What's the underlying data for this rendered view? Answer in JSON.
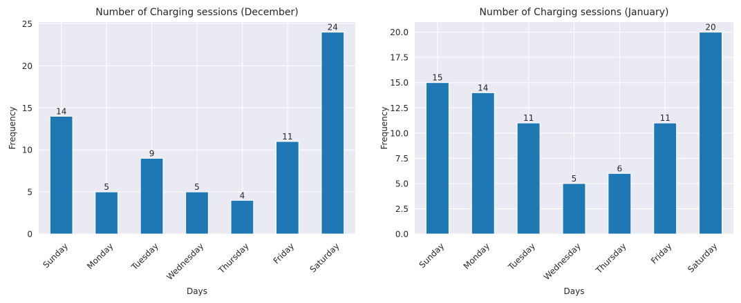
{
  "chart_data": [
    {
      "type": "bar",
      "title": "Number of Charging sessions (December)",
      "xlabel": "Days",
      "ylabel": "Frequency",
      "categories": [
        "Sunday",
        "Monday",
        "Tuesday",
        "Wednesday",
        "Thursday",
        "Friday",
        "Saturday"
      ],
      "values": [
        14,
        5,
        9,
        5,
        4,
        11,
        24
      ],
      "data_labels": [
        "14",
        "5",
        "9",
        "5",
        "4",
        "11",
        "24"
      ],
      "ylim": [
        0,
        25.2
      ],
      "yticks": [
        0,
        5,
        10,
        15,
        20,
        25
      ],
      "ytick_labels": [
        "0",
        "5",
        "10",
        "15",
        "20",
        "25"
      ],
      "grid": true,
      "bar_color": "#1f77b4",
      "background_color": "#eaeaf2",
      "xtick_rotation": "45deg"
    },
    {
      "type": "bar",
      "title": "Number of Charging sessions (January)",
      "xlabel": "Days",
      "ylabel": "Frequency",
      "categories": [
        "Sunday",
        "Monday",
        "Tuesday",
        "Wednesday",
        "Thursday",
        "Friday",
        "Saturday"
      ],
      "values": [
        15,
        14,
        11,
        5,
        6,
        11,
        20
      ],
      "data_labels": [
        "15",
        "14",
        "11",
        "5",
        "6",
        "11",
        "20"
      ],
      "ylim": [
        0,
        21
      ],
      "yticks": [
        0,
        2.5,
        5,
        7.5,
        10,
        12.5,
        15,
        17.5,
        20
      ],
      "ytick_labels": [
        "0.0",
        "2.5",
        "5.0",
        "7.5",
        "10.0",
        "12.5",
        "15.0",
        "17.5",
        "20.0"
      ],
      "grid": true,
      "bar_color": "#1f77b4",
      "background_color": "#eaeaf2",
      "xtick_rotation": "45deg"
    }
  ]
}
